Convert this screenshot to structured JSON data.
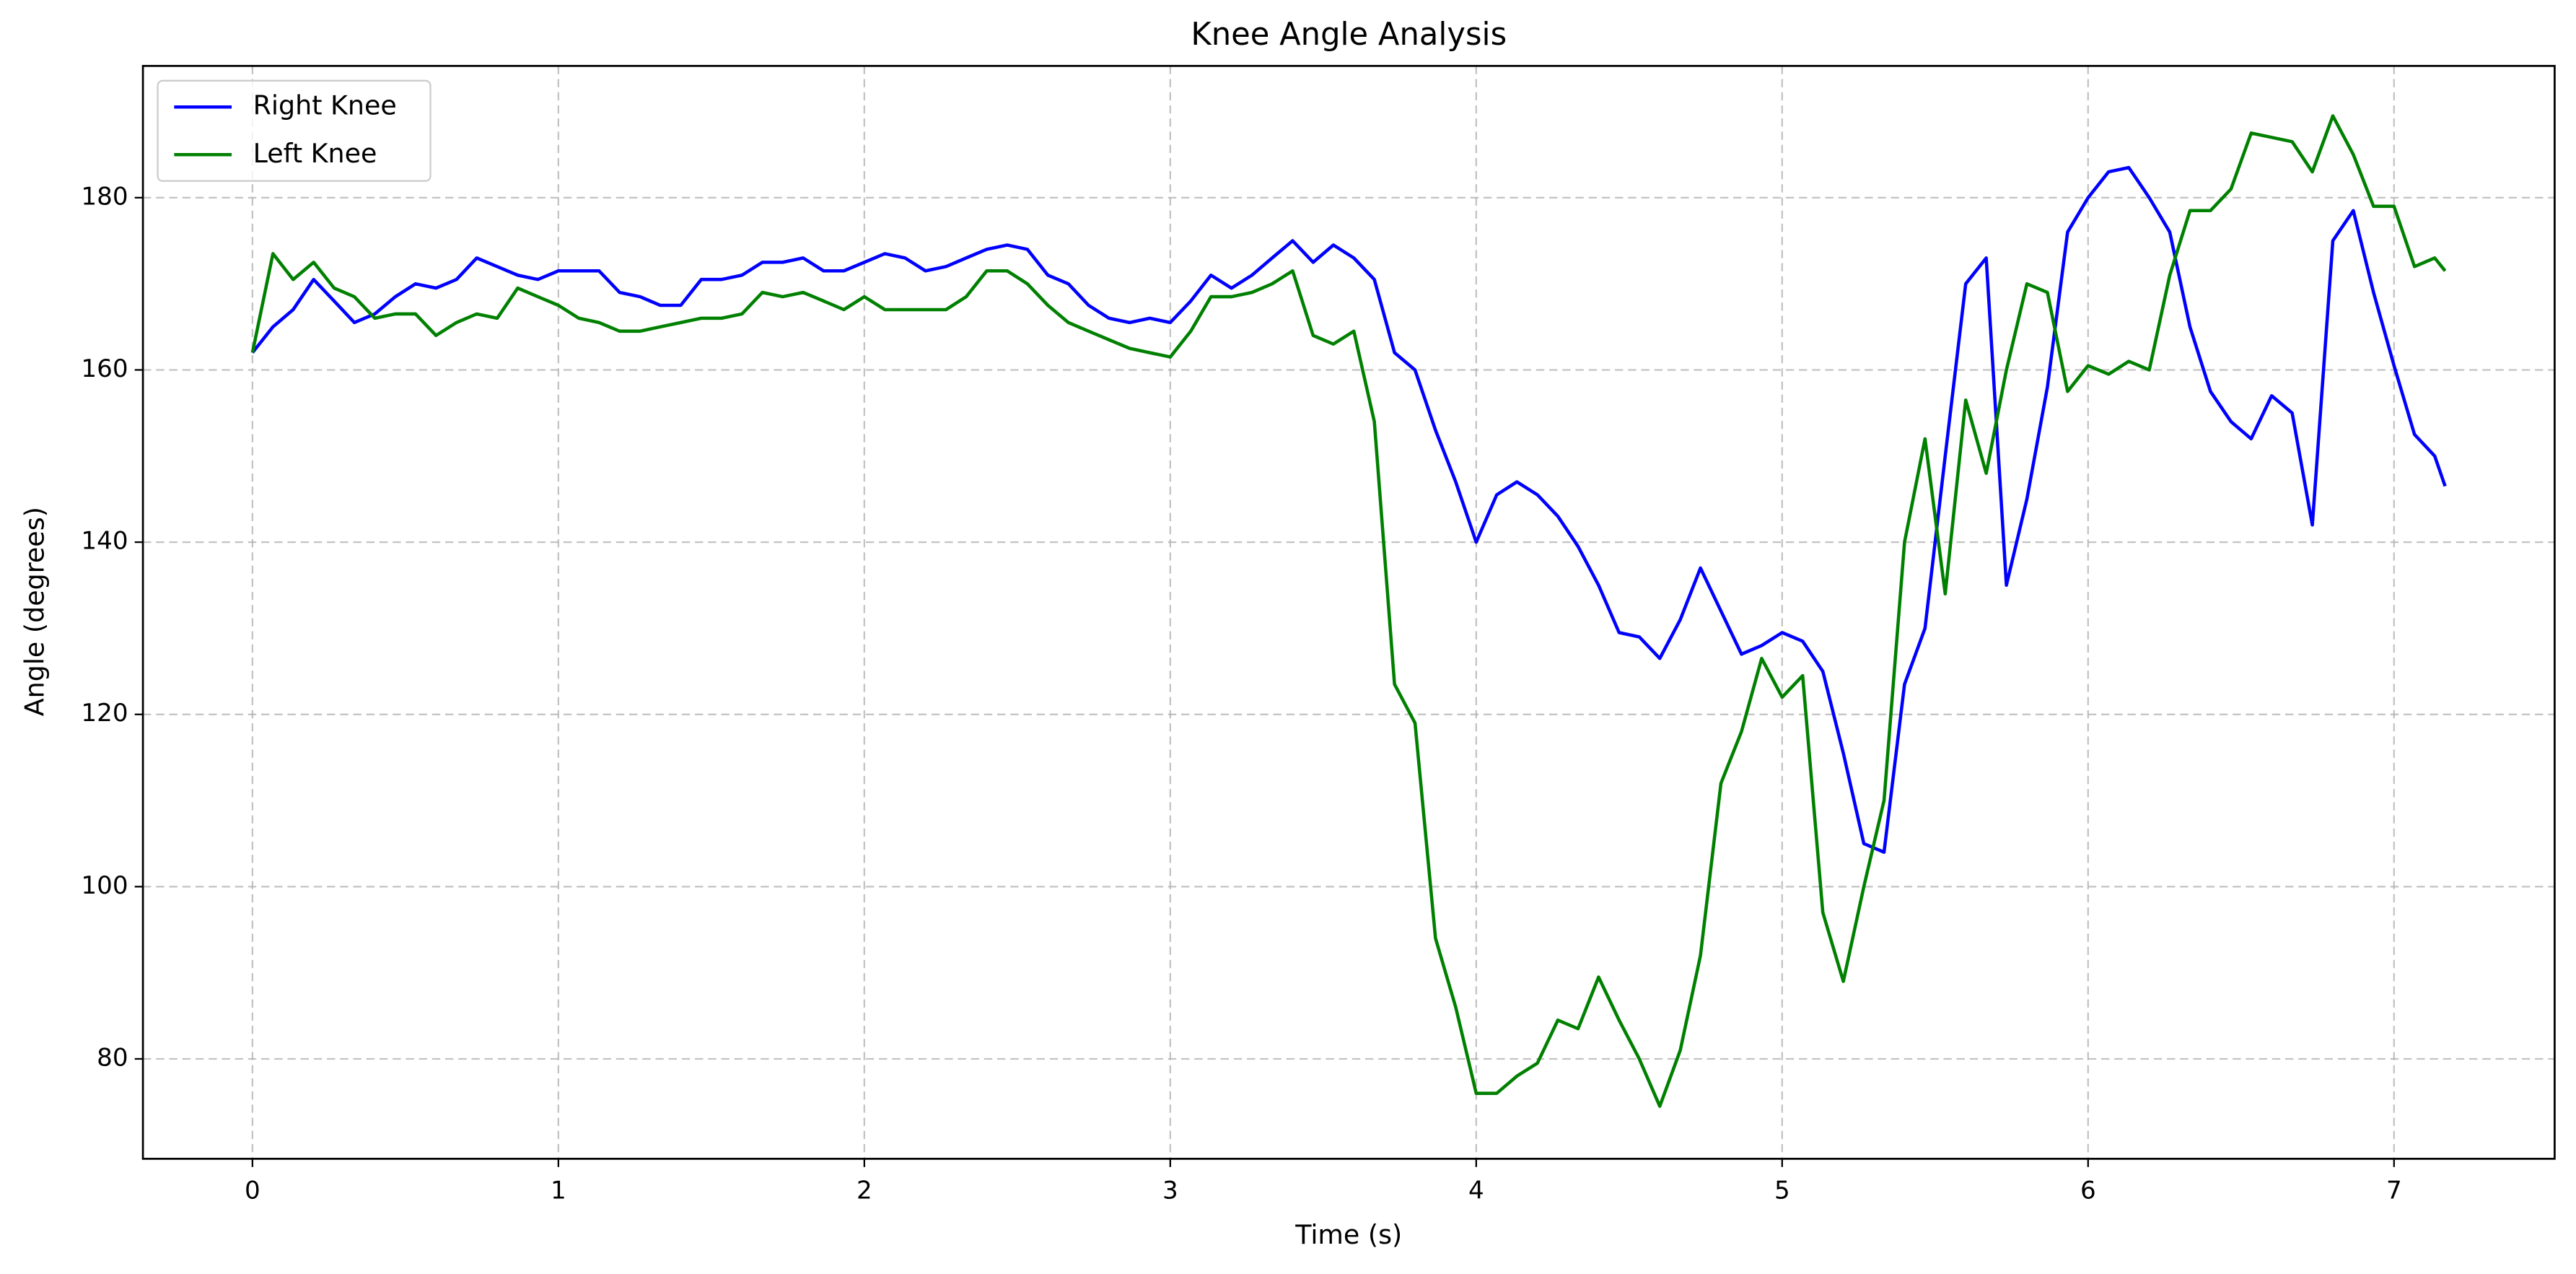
{
  "chart_data": {
    "type": "line",
    "title": "Knee Angle Analysis",
    "x_label": "Time (s)",
    "y_label": "Angle (degrees)",
    "x": [
      0,
      0.067,
      0.133,
      0.2,
      0.267,
      0.333,
      0.4,
      0.467,
      0.533,
      0.6,
      0.667,
      0.733,
      0.8,
      0.867,
      0.933,
      1,
      1.067,
      1.133,
      1.2,
      1.267,
      1.333,
      1.4,
      1.467,
      1.533,
      1.6,
      1.667,
      1.733,
      1.8,
      1.867,
      1.933,
      2,
      2.067,
      2.133,
      2.2,
      2.267,
      2.333,
      2.4,
      2.467,
      2.533,
      2.6,
      2.667,
      2.733,
      2.8,
      2.867,
      2.933,
      3,
      3.067,
      3.133,
      3.2,
      3.267,
      3.333,
      3.4,
      3.467,
      3.533,
      3.6,
      3.667,
      3.733,
      3.8,
      3.867,
      3.933,
      4,
      4.067,
      4.133,
      4.2,
      4.267,
      4.333,
      4.4,
      4.467,
      4.533,
      4.6,
      4.667,
      4.733,
      4.8,
      4.867,
      4.933,
      5,
      5.067,
      5.133,
      5.2,
      5.267,
      5.333,
      5.4,
      5.467,
      5.533,
      5.6,
      5.667,
      5.733,
      5.8,
      5.867,
      5.933,
      6,
      6.067,
      6.133,
      6.2,
      6.267,
      6.333,
      6.4,
      6.467,
      6.533,
      6.6,
      6.667,
      6.733,
      6.8,
      6.867,
      6.933,
      7,
      7.067,
      7.133,
      7.167
    ],
    "series": [
      {
        "name": "Right Knee",
        "color": "#0000ff",
        "values": [
          162,
          165,
          167,
          170.5,
          168,
          165.5,
          166.5,
          168.5,
          170,
          169.5,
          170.5,
          173,
          172,
          171,
          170.5,
          171.5,
          171.5,
          171.5,
          169,
          168.5,
          167.5,
          167.5,
          170.5,
          170.5,
          171,
          172.5,
          172.5,
          173,
          171.5,
          171.5,
          172.5,
          173.5,
          173,
          171.5,
          172,
          173,
          174,
          174.5,
          174,
          171,
          170,
          167.5,
          166,
          165.5,
          166,
          165.5,
          168,
          171,
          169.5,
          171,
          173,
          175,
          172.5,
          174.5,
          173,
          170.5,
          162,
          160,
          153,
          147,
          140,
          145.5,
          147,
          145.5,
          143,
          139.5,
          135,
          129.5,
          129,
          126.5,
          131,
          137,
          132,
          127,
          128,
          129.5,
          128.5,
          125,
          115.5,
          105,
          104,
          123.5,
          130,
          150,
          170,
          173,
          135,
          145,
          158,
          176,
          180,
          183,
          183.5,
          180,
          176,
          165,
          157.5,
          154,
          152,
          157,
          155,
          142,
          175,
          178.5,
          169,
          160.5,
          152.5,
          150,
          146.5
        ]
      },
      {
        "name": "Left Knee",
        "color": "#008000",
        "values": [
          162,
          173.5,
          170.5,
          172.5,
          169.5,
          168.5,
          166,
          166.5,
          166.5,
          164,
          165.5,
          166.5,
          166,
          169.5,
          168.5,
          167.5,
          166,
          165.5,
          164.5,
          164.5,
          165,
          165.5,
          166,
          166,
          166.5,
          169,
          168.5,
          169,
          168,
          167,
          168.5,
          167,
          167,
          167,
          167,
          168.5,
          171.5,
          171.5,
          170,
          167.5,
          165.5,
          164.5,
          163.5,
          162.5,
          162,
          161.5,
          164.5,
          168.5,
          168.5,
          169,
          170,
          171.5,
          164,
          163,
          164.5,
          154,
          123.5,
          119,
          94,
          86,
          76,
          76,
          78,
          79.5,
          84.5,
          83.5,
          89.5,
          84.5,
          80,
          74.5,
          81,
          92,
          112,
          118,
          126.5,
          122,
          124.5,
          97,
          89,
          100,
          110,
          140,
          152,
          134,
          156.5,
          148,
          160,
          170,
          169,
          157.5,
          160.5,
          159.5,
          161,
          160,
          171,
          178.5,
          178.5,
          181,
          187.5,
          187,
          186.5,
          183,
          189.5,
          185,
          179,
          179,
          172,
          173,
          171.5
        ]
      }
    ],
    "xlim": [
      -0.358,
      7.525
    ],
    "ylim": [
      68.4,
      195.3
    ],
    "xticks": [
      0,
      1,
      2,
      3,
      4,
      5,
      6,
      7
    ],
    "yticks": [
      80,
      100,
      120,
      140,
      160,
      180
    ],
    "grid": true,
    "legend": "upper left"
  }
}
